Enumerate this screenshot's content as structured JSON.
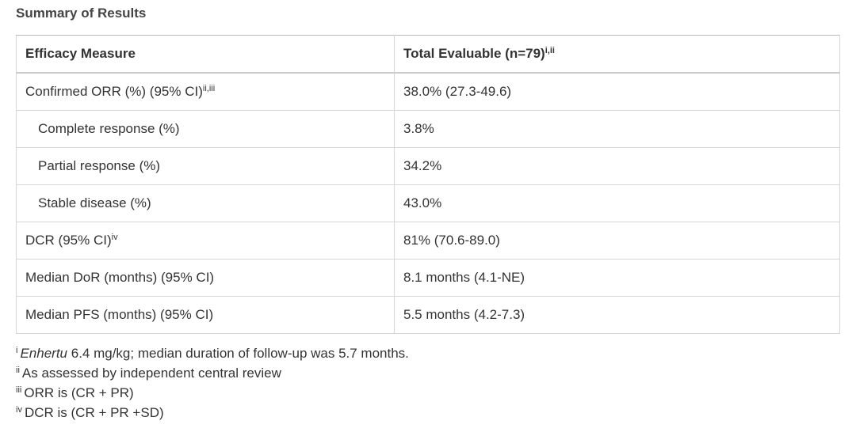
{
  "title": "Summary of Results",
  "table": {
    "header": [
      {
        "text": "Efficacy Measure"
      },
      {
        "text": "Total Evaluable (n=79)",
        "sup": "i,ii"
      }
    ],
    "rows": [
      [
        {
          "text": "Confirmed ORR (%) (95% CI)",
          "sup": "ii,iii"
        },
        {
          "text": "38.0% (27.3-49.6)"
        }
      ],
      [
        {
          "text": "Complete response (%)"
        },
        {
          "text": "3.8%"
        }
      ],
      [
        {
          "text": "Partial response (%)"
        },
        {
          "text": "34.2%"
        }
      ],
      [
        {
          "text": "Stable disease (%)"
        },
        {
          "text": "43.0%"
        }
      ],
      [
        {
          "text": "DCR (95% CI)",
          "sup": "iv"
        },
        {
          "text": "81% (70.6-89.0)"
        }
      ],
      [
        {
          "text": "Median DoR (months) (95% CI)"
        },
        {
          "text": "8.1 months (4.1-NE)"
        }
      ],
      [
        {
          "text": "Median PFS (months) (95% CI)"
        },
        {
          "text": "5.5 months (4.2-7.3)"
        }
      ]
    ]
  },
  "footnotes": [
    {
      "marker": "i",
      "emphasis": "Enhertu",
      "text": "6.4 mg/kg; median duration of follow-up was 5.7 months."
    },
    {
      "marker": "ii",
      "text": "As assessed by independent central review"
    },
    {
      "marker": "iii",
      "text": "ORR is (CR + PR)"
    },
    {
      "marker": "iv",
      "text": "DCR is (CR + PR +SD)"
    }
  ]
}
